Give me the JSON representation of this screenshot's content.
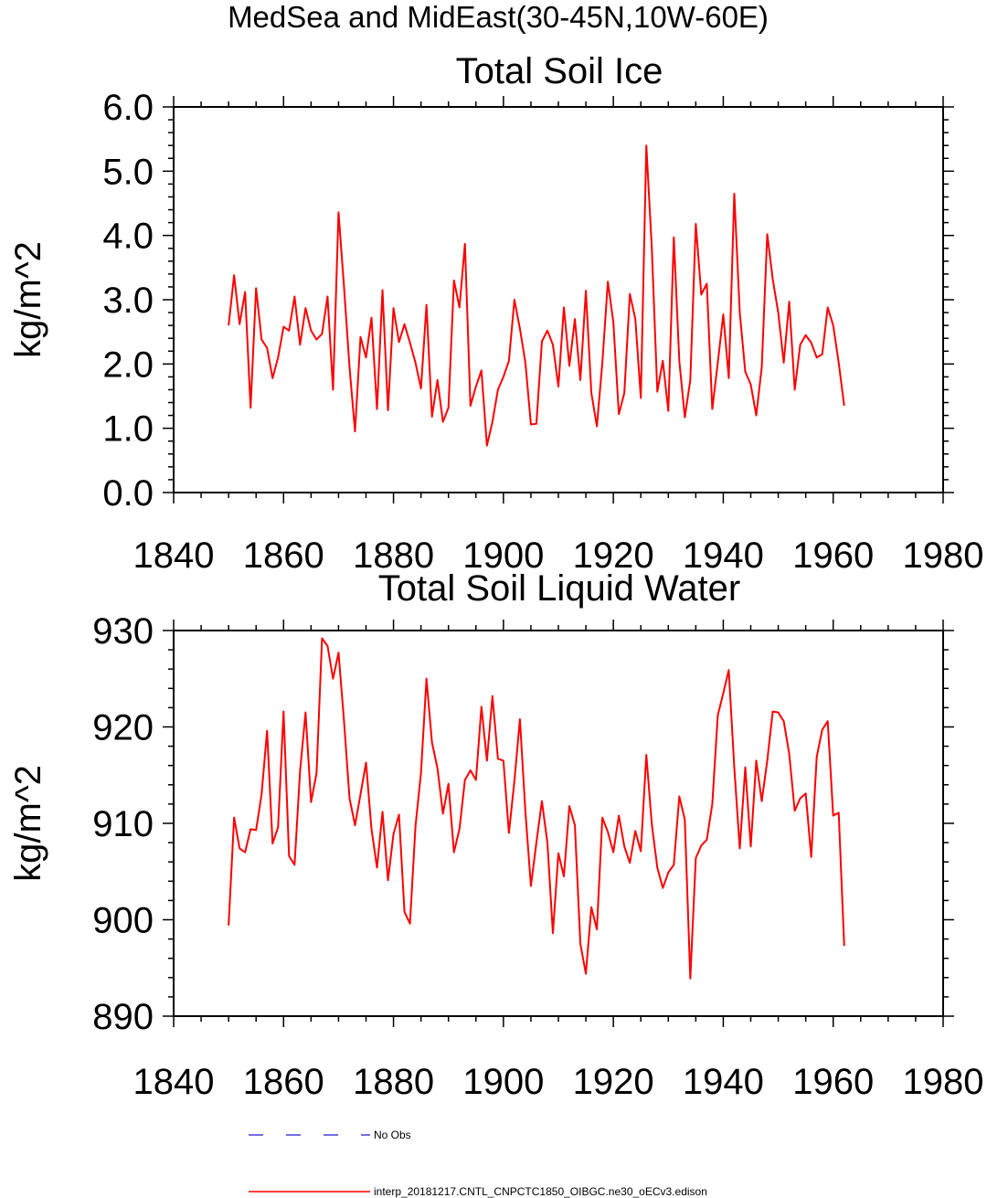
{
  "suptitle": "MedSea and MidEast(30-45N,10W-60E)",
  "legend": {
    "obs_label": "No Obs",
    "obs_color": "#1a1acc",
    "model_label": "interp_20181217.CNTL_CNPCTC1850_OIBGC.ne30_oECv3.edison",
    "model_color": "#ff0000"
  },
  "chart_data": [
    {
      "type": "line",
      "title": "Total Soil Ice",
      "ylabel": "kg/m^2",
      "xlabel": "",
      "xlim": [
        1840,
        1980
      ],
      "ylim": [
        0,
        6
      ],
      "xticks": [
        1840,
        1860,
        1880,
        1900,
        1920,
        1940,
        1960,
        1980
      ],
      "yticks": [
        0,
        1,
        2,
        3,
        4,
        5,
        6
      ],
      "ytick_labels": [
        "0.0",
        "1.0",
        "2.0",
        "3.0",
        "4.0",
        "5.0",
        "6.0"
      ],
      "x_start": 1850,
      "series": [
        {
          "color": "#ff0000",
          "values": [
            2.6,
            3.38,
            2.62,
            3.12,
            1.32,
            3.18,
            2.38,
            2.25,
            1.78,
            2.1,
            2.58,
            2.52,
            3.05,
            2.3,
            2.87,
            2.52,
            2.38,
            2.47,
            3.05,
            1.6,
            4.36,
            3.2,
            1.95,
            0.95,
            2.42,
            2.1,
            2.72,
            1.3,
            3.15,
            1.28,
            2.87,
            2.34,
            2.62,
            2.33,
            2.02,
            1.62,
            2.92,
            1.18,
            1.75,
            1.1,
            1.32,
            3.3,
            2.88,
            3.87,
            1.35,
            1.65,
            1.9,
            0.73,
            1.1,
            1.6,
            1.8,
            2.05,
            3.0,
            2.55,
            2.02,
            1.06,
            1.07,
            2.35,
            2.52,
            2.3,
            1.65,
            2.88,
            1.97,
            2.7,
            1.75,
            3.14,
            1.55,
            1.03,
            2.02,
            3.28,
            2.65,
            1.22,
            1.55,
            3.09,
            2.7,
            1.47,
            5.4,
            3.8,
            1.57,
            2.05,
            1.27,
            3.97,
            2.05,
            1.17,
            1.75,
            4.18,
            3.08,
            3.25,
            1.3,
            2.02,
            2.77,
            1.78,
            4.65,
            2.8,
            1.88,
            1.68,
            1.2,
            1.95,
            4.02,
            3.32,
            2.8,
            2.02,
            2.97,
            1.6,
            2.3,
            2.45,
            2.33,
            2.1,
            2.15,
            2.88,
            2.6,
            2.02,
            1.35
          ]
        }
      ]
    },
    {
      "type": "line",
      "title": "Total Soil Liquid Water",
      "ylabel": "kg/m^2",
      "xlabel": "",
      "xlim": [
        1840,
        1980
      ],
      "ylim": [
        890,
        930
      ],
      "xticks": [
        1840,
        1860,
        1880,
        1900,
        1920,
        1940,
        1960,
        1980
      ],
      "yticks": [
        890,
        900,
        910,
        920,
        930
      ],
      "ytick_labels": [
        "890",
        "900",
        "910",
        "920",
        "930"
      ],
      "x_start": 1850,
      "series": [
        {
          "color": "#ff0000",
          "values": [
            899.4,
            910.6,
            907.4,
            907.0,
            909.4,
            909.3,
            913.0,
            919.6,
            907.9,
            909.6,
            921.6,
            906.6,
            905.7,
            915.4,
            921.5,
            912.2,
            915.2,
            929.2,
            928.4,
            925.0,
            927.7,
            920.6,
            912.6,
            909.8,
            913.0,
            916.3,
            909.4,
            905.4,
            911.2,
            904.1,
            908.9,
            910.9,
            900.8,
            899.6,
            909.7,
            915.2,
            925.0,
            918.4,
            915.7,
            911.0,
            914.1,
            907.0,
            909.4,
            914.5,
            915.5,
            914.5,
            922.1,
            916.5,
            923.2,
            916.7,
            916.5,
            909.0,
            914.4,
            920.8,
            911.2,
            903.5,
            908.0,
            912.3,
            908.0,
            898.6,
            906.9,
            904.5,
            911.8,
            909.8,
            897.5,
            894.4,
            901.3,
            899.0,
            910.6,
            909.1,
            907.0,
            910.8,
            907.6,
            905.9,
            909.2,
            907.1,
            917.1,
            909.9,
            905.4,
            903.3,
            904.9,
            905.7,
            912.8,
            910.4,
            893.9,
            906.4,
            907.7,
            908.3,
            912.0,
            921.2,
            923.5,
            925.9,
            915.8,
            907.4,
            915.8,
            907.6,
            916.5,
            912.3,
            916.5,
            921.6,
            921.5,
            920.6,
            917.2,
            911.3,
            912.6,
            913.1,
            906.5,
            916.9,
            919.7,
            920.6,
            910.8,
            911.1,
            897.3
          ]
        }
      ]
    }
  ]
}
